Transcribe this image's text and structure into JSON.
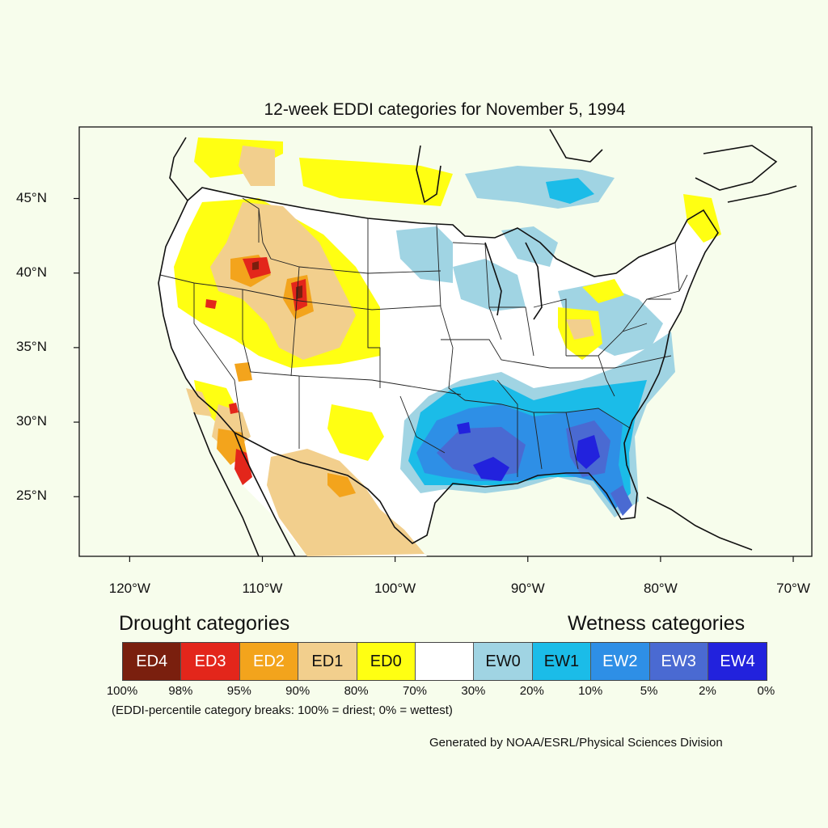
{
  "title": "12-week EDDI categories for November 5, 1994",
  "map": {
    "lat_ticks": [
      {
        "value": 45,
        "label": "45°N"
      },
      {
        "value": 40,
        "label": "40°N"
      },
      {
        "value": 35,
        "label": "35°N"
      },
      {
        "value": 30,
        "label": "30°N"
      },
      {
        "value": 25,
        "label": "25°N"
      }
    ],
    "lon_ticks": [
      {
        "value": -120,
        "label": "120°W"
      },
      {
        "value": -110,
        "label": "110°W"
      },
      {
        "value": -100,
        "label": "100°W"
      },
      {
        "value": -90,
        "label": "90°W"
      },
      {
        "value": -80,
        "label": "80°W"
      },
      {
        "value": -70,
        "label": "70°W"
      }
    ],
    "lon_range": [
      -123.8,
      -68.6
    ],
    "lat_range": [
      21.0,
      49.8
    ]
  },
  "legend": {
    "drought_heading": "Drought categories",
    "wetness_heading": "Wetness categories",
    "categories": [
      {
        "label": "ED4",
        "color": "#7a1f0e",
        "text_color": "#ffffff"
      },
      {
        "label": "ED3",
        "color": "#e3261b",
        "text_color": "#ffffff"
      },
      {
        "label": "ED2",
        "color": "#f3a41c",
        "text_color": "#ffffff"
      },
      {
        "label": "ED1",
        "color": "#f2cf8d",
        "text_color": "#111111"
      },
      {
        "label": "ED0",
        "color": "#ffff12",
        "text_color": "#111111"
      },
      {
        "label": "",
        "color": "#ffffff",
        "text_color": "#111111"
      },
      {
        "label": "EW0",
        "color": "#a0d4e3",
        "text_color": "#111111"
      },
      {
        "label": "EW1",
        "color": "#1bbce8",
        "text_color": "#111111"
      },
      {
        "label": "EW2",
        "color": "#2e8fe6",
        "text_color": "#ffffff"
      },
      {
        "label": "EW3",
        "color": "#4a6ad2",
        "text_color": "#ffffff"
      },
      {
        "label": "EW4",
        "color": "#2222dd",
        "text_color": "#ffffff"
      }
    ],
    "percent_breaks": [
      "100%",
      "98%",
      "95%",
      "90%",
      "80%",
      "70%",
      "30%",
      "20%",
      "10%",
      "5%",
      "2%",
      "0%"
    ],
    "note": "(EDDI-percentile category breaks: 100% = driest; 0% = wettest)"
  },
  "credit": "Generated by NOAA/ESRL/Physical Sciences Division"
}
